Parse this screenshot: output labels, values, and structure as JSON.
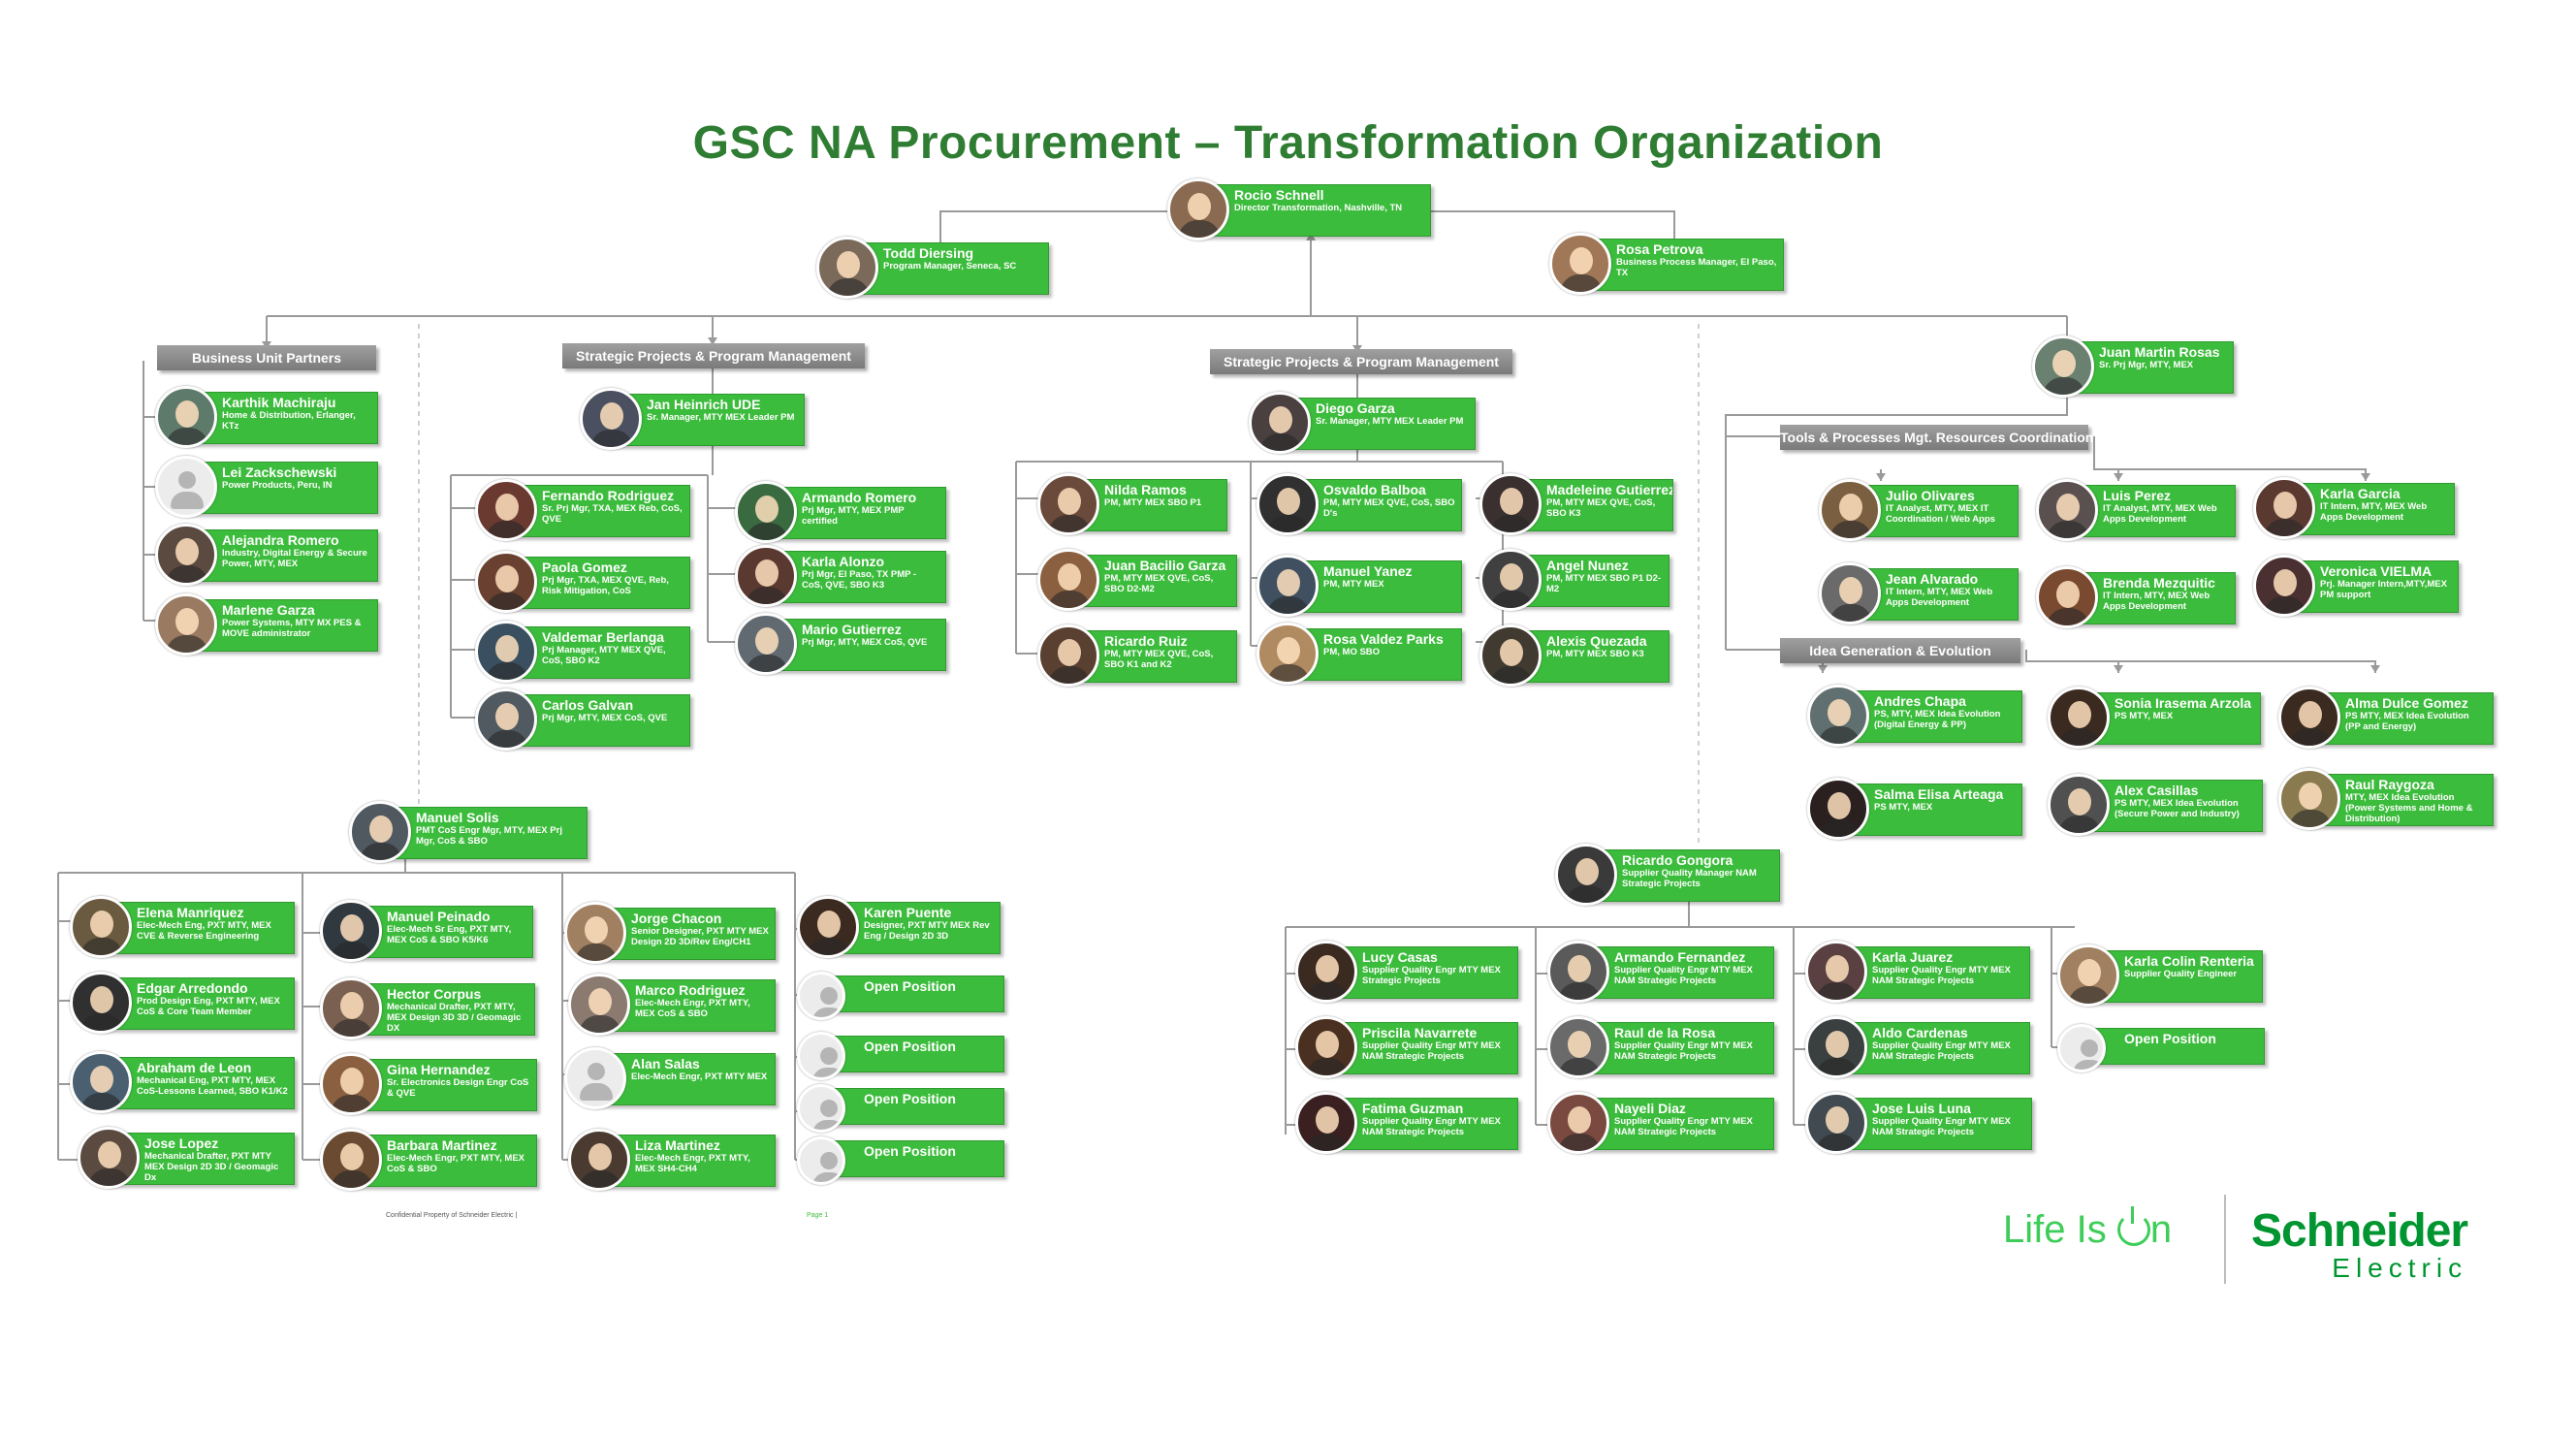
{
  "title": "GSC NA Procurement – Transformation Organization",
  "colors": {
    "card": "#3cbc3c",
    "title": "#2e7d32",
    "section": "#8a8a8a",
    "brand": "#3dcd58"
  },
  "sections": {
    "bu_partners": "Business Unit Partners",
    "spm1": "Strategic Projects & Program Management",
    "spm2": "Strategic Projects & Program Management",
    "tools": "Tools & Processes Mgt. Resources Coordination",
    "idea": "Idea Generation & Evolution"
  },
  "people": {
    "rocio": {
      "name": "Rocio Schnell",
      "role": "Director Transformation, Nashville, TN"
    },
    "todd": {
      "name": "Todd Diersing",
      "role": "Program Manager, Seneca, SC"
    },
    "rosa": {
      "name": "Rosa Petrova",
      "role": "Business Process Manager, El Paso, TX"
    },
    "karthik": {
      "name": "Karthik Machiraju",
      "role": "Home & Distribution, Erlanger, KTz"
    },
    "lei": {
      "name": "Lei Zackschewski",
      "role": "Power Products, Peru, IN"
    },
    "alejandra": {
      "name": "Alejandra Romero",
      "role": "Industry, Digital Energy & Secure Power, MTY, MEX"
    },
    "marlene": {
      "name": "Marlene Garza",
      "role": "Power Systems, MTY MX PES & MOVE administrator"
    },
    "jan": {
      "name": "Jan Heinrich UDE",
      "role": "Sr. Manager, MTY MEX Leader PM"
    },
    "fernando": {
      "name": "Fernando Rodriguez",
      "role": "Sr. Prj Mgr, TXA, MEX Reb, CoS, QVE"
    },
    "paola": {
      "name": "Paola Gomez",
      "role": "Prj Mgr, TXA, MEX QVE, Reb, Risk Mitigation, CoS"
    },
    "valdemar": {
      "name": "Valdemar Berlanga",
      "role": "Prj Manager, MTY MEX QVE, CoS, SBO K2"
    },
    "carlos": {
      "name": "Carlos Galvan",
      "role": "Prj Mgr, MTY, MEX CoS, QVE"
    },
    "armando_r": {
      "name": "Armando Romero",
      "role": "Prj Mgr, MTY, MEX PMP certified"
    },
    "karla_a": {
      "name": "Karla Alonzo",
      "role": "Prj Mgr, El Paso, TX PMP - CoS, QVE, SBO K3"
    },
    "mario": {
      "name": "Mario Gutierrez",
      "role": "Prj Mgr, MTY, MEX CoS, QVE"
    },
    "diego": {
      "name": "Diego Garza",
      "role": "Sr. Manager, MTY MEX Leader PM"
    },
    "nilda": {
      "name": "Nilda Ramos",
      "role": "PM, MTY MEX SBO P1"
    },
    "juan_b": {
      "name": "Juan Bacilio Garza",
      "role": "PM, MTY MEX QVE, CoS, SBO D2-M2"
    },
    "ricardo_r": {
      "name": "Ricardo Ruiz",
      "role": "PM, MTY MEX QVE, CoS, SBO K1 and K2"
    },
    "osvaldo": {
      "name": "Osvaldo Balboa",
      "role": "PM, MTY MEX QVE, CoS, SBO D's"
    },
    "manuel_y": {
      "name": "Manuel Yanez",
      "role": "PM, MTY MEX"
    },
    "rosa_v": {
      "name": "Rosa Valdez Parks",
      "role": "PM, MO SBO"
    },
    "madeleine": {
      "name": "Madeleine Gutierrez",
      "role": "PM, MTY MEX QVE, CoS, SBO K3"
    },
    "angel": {
      "name": "Angel Nunez",
      "role": "PM, MTY MEX SBO P1 D2-M2"
    },
    "alexis": {
      "name": "Alexis Quezada",
      "role": "PM, MTY MEX SBO K3"
    },
    "juan_m": {
      "name": "Juan Martin Rosas",
      "role": "Sr. Prj Mgr, MTY, MEX"
    },
    "julio": {
      "name": "Julio Olivares",
      "role": "IT Analyst, MTY, MEX IT Coordination / Web Apps"
    },
    "luis": {
      "name": "Luis Perez",
      "role": "IT Analyst, MTY, MEX Web Apps Development"
    },
    "karla_g": {
      "name": "Karla Garcia",
      "role": "IT Intern, MTY, MEX Web Apps Development"
    },
    "jean": {
      "name": "Jean Alvarado",
      "role": "IT Intern, MTY, MEX Web Apps Development"
    },
    "brenda": {
      "name": "Brenda Mezquitic",
      "role": "IT Intern, MTY, MEX Web Apps Development"
    },
    "veronica": {
      "name": "Veronica VIELMA",
      "role": "Prj. Manager Intern,MTY,MEX PM support"
    },
    "andres": {
      "name": "Andres Chapa",
      "role": "PS, MTY, MEX Idea Evolution (Digital Energy & PP)"
    },
    "sonia": {
      "name": "Sonia Irasema Arzola",
      "role": "PS MTY, MEX"
    },
    "alma": {
      "name": "Alma Dulce Gomez",
      "role": "PS MTY, MEX Idea Evolution (PP and Energy)"
    },
    "salma": {
      "name": "Salma Elisa Arteaga",
      "role": "PS MTY, MEX"
    },
    "alex": {
      "name": "Alex Casillas",
      "role": "PS MTY, MEX Idea Evolution (Secure Power and Industry)"
    },
    "raul_r": {
      "name": "Raul Raygoza",
      "role": "MTY, MEX Idea Evolution (Power Systems and Home & Distribution)"
    },
    "manuel_s": {
      "name": "Manuel Solis",
      "role": "PMT CoS Engr Mgr, MTY, MEX Prj Mgr, CoS & SBO"
    },
    "elena": {
      "name": "Elena Manriquez",
      "role": "Elec-Mech Eng, PXT MTY, MEX CVE & Reverse Engineering"
    },
    "edgar": {
      "name": "Edgar Arredondo",
      "role": "Prod Design Eng, PXT MTY, MEX CoS & Core Team Member"
    },
    "abraham": {
      "name": "Abraham de Leon",
      "role": "Mechanical Eng, PXT MTY, MEX CoS-Lessons Learned, SBO K1/K2"
    },
    "jose_l": {
      "name": "Jose Lopez",
      "role": "Mechanical Drafter, PXT MTY MEX Design 2D 3D / Geomagic Dx"
    },
    "manuel_p": {
      "name": "Manuel Peinado",
      "role": "Elec-Mech Sr Eng, PXT MTY, MEX CoS & SBO K5/K6"
    },
    "hector": {
      "name": "Hector Corpus",
      "role": "Mechanical Drafter, PXT MTY, MEX Design 3D 3D / Geomagic DX"
    },
    "gina": {
      "name": "Gina Hernandez",
      "role": "Sr. Electronics Design Engr CoS & QVE"
    },
    "barbara": {
      "name": "Barbara Martinez",
      "role": "Elec-Mech Engr, PXT MTY, MEX CoS & SBO"
    },
    "jorge": {
      "name": "Jorge Chacon",
      "role": "Senior Designer, PXT MTY MEX Design 2D 3D/Rev Eng/CH1"
    },
    "marco": {
      "name": "Marco Rodriguez",
      "role": "Elec-Mech Engr, PXT MTY, MEX CoS & SBO"
    },
    "alan": {
      "name": "Alan Salas",
      "role": "Elec-Mech Engr, PXT MTY MEX"
    },
    "liza": {
      "name": "Liza Martinez",
      "role": "Elec-Mech Engr, PXT MTY, MEX SH4-CH4"
    },
    "karen": {
      "name": "Karen Puente",
      "role": "Designer, PXT MTY MEX Rev Eng / Design 2D 3D"
    },
    "open1": {
      "name": "Open Position",
      "role": ""
    },
    "open2": {
      "name": "Open Position",
      "role": ""
    },
    "open3": {
      "name": "Open Position",
      "role": ""
    },
    "open4": {
      "name": "Open Position",
      "role": ""
    },
    "ricardo_g": {
      "name": "Ricardo Gongora",
      "role": "Supplier Quality Manager NAM Strategic Projects"
    },
    "lucy": {
      "name": "Lucy Casas",
      "role": "Supplier Quality Engr MTY MEX Strategic Projects"
    },
    "priscila": {
      "name": "Priscila Navarrete",
      "role": "Supplier Quality Engr MTY MEX NAM Strategic Projects"
    },
    "fatima": {
      "name": "Fatima Guzman",
      "role": "Supplier Quality Engr MTY MEX NAM Strategic Projects"
    },
    "armando_f": {
      "name": "Armando Fernandez",
      "role": "Supplier Quality Engr MTY MEX NAM Strategic Projects"
    },
    "raul_d": {
      "name": "Raul de la Rosa",
      "role": "Supplier Quality Engr MTY MEX NAM Strategic Projects"
    },
    "nayeli": {
      "name": "Nayeli Diaz",
      "role": "Supplier Quality Engr MTY MEX NAM Strategic Projects"
    },
    "karla_j": {
      "name": "Karla Juarez",
      "role": "Supplier Quality Engr MTY MEX NAM Strategic Projects"
    },
    "aldo": {
      "name": "Aldo Cardenas",
      "role": "Supplier Quality Engr MTY MEX NAM Strategic Projects"
    },
    "jose_lu": {
      "name": "Jose Luis Luna",
      "role": "Supplier Quality Engr MTY MEX NAM Strategic Projects"
    },
    "karla_c": {
      "name": "Karla Colin Renteria",
      "role": "Supplier Quality Engineer"
    },
    "open5": {
      "name": "Open Position",
      "role": ""
    }
  },
  "footer": {
    "confidential": "Confidential Property of Schneider Electric |",
    "page": "Page 1",
    "tagline_prefix": "Life Is ",
    "tagline_suffix": "n",
    "logo_line1": "Schneider",
    "logo_line2": "Electric"
  }
}
